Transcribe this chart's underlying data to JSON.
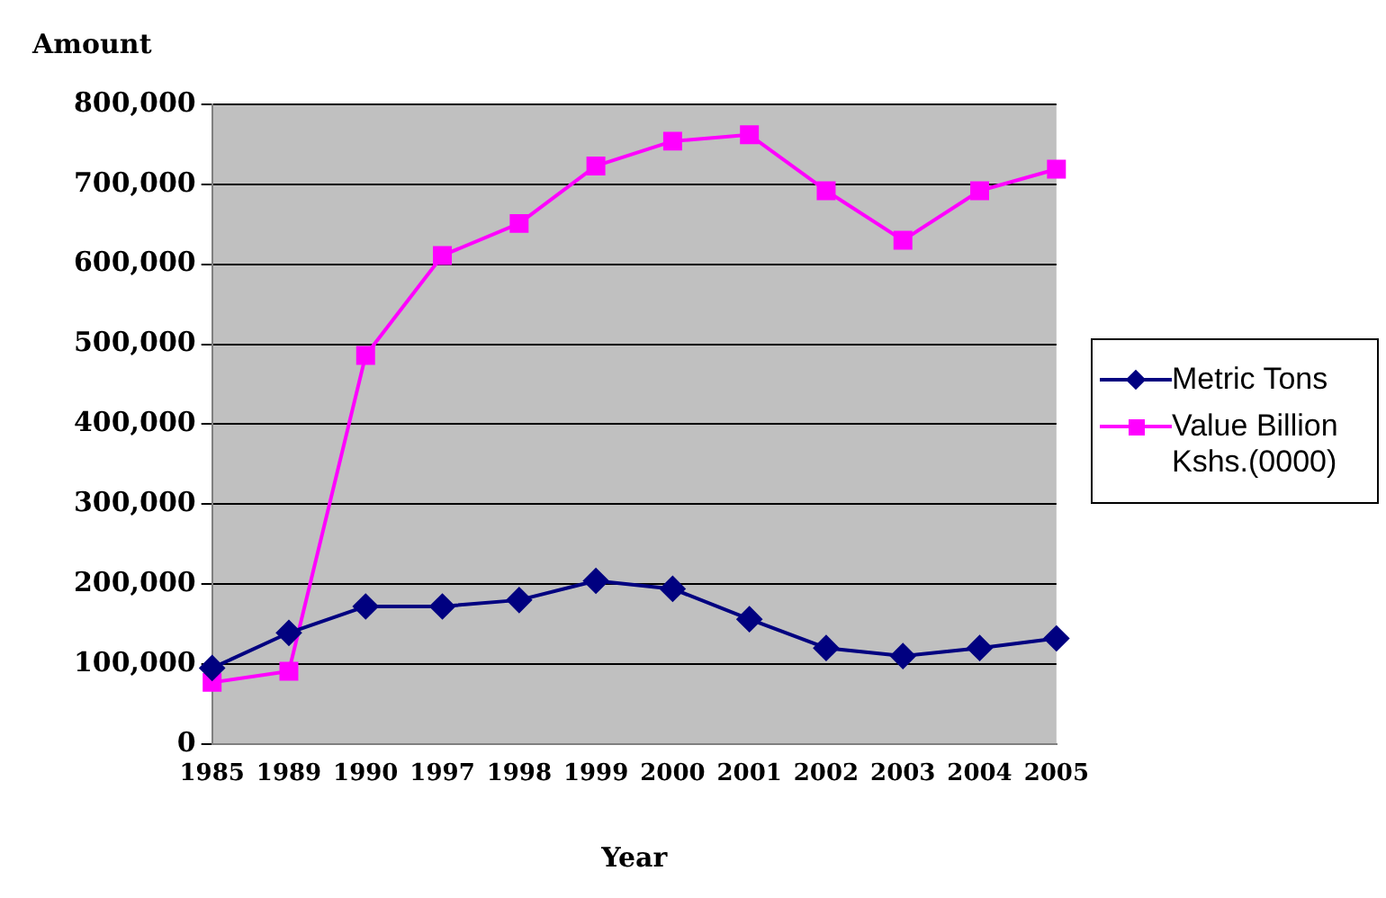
{
  "chart_data": {
    "type": "line",
    "ylabel": "Amount",
    "xlabel": "Year",
    "categories": [
      "1985",
      "1989",
      "1990",
      "1997",
      "1998",
      "1999",
      "2000",
      "2001",
      "2002",
      "2003",
      "2004",
      "2005"
    ],
    "series": [
      {
        "name": "Metric Tons",
        "color": "#000080",
        "marker": "diamond",
        "values": [
          95000,
          139000,
          172000,
          172000,
          180000,
          204000,
          194000,
          156000,
          120000,
          110000,
          120000,
          132000
        ]
      },
      {
        "name": "Value Billion Kshs.(0000)",
        "color": "#ff00ff",
        "marker": "square",
        "values": [
          77000,
          91000,
          486000,
          611000,
          651000,
          723000,
          754000,
          762000,
          692000,
          630000,
          692000,
          719000
        ]
      }
    ],
    "ylim": [
      0,
      800000
    ],
    "yticks": [
      0,
      {
        "value": 100000,
        "label": "100,000"
      },
      {
        "value": 200000,
        "label": "200,000"
      },
      {
        "value": 300000,
        "label": "300,000"
      },
      {
        "value": 400000,
        "label": "400,000"
      },
      {
        "value": 500000,
        "label": "500,000"
      },
      {
        "value": 600000,
        "label": "600,000"
      },
      {
        "value": 700000,
        "label": "700,000"
      },
      {
        "value": 800000,
        "label": "800,000"
      }
    ],
    "grid": "y",
    "legend": "right",
    "line_style": "solid"
  }
}
